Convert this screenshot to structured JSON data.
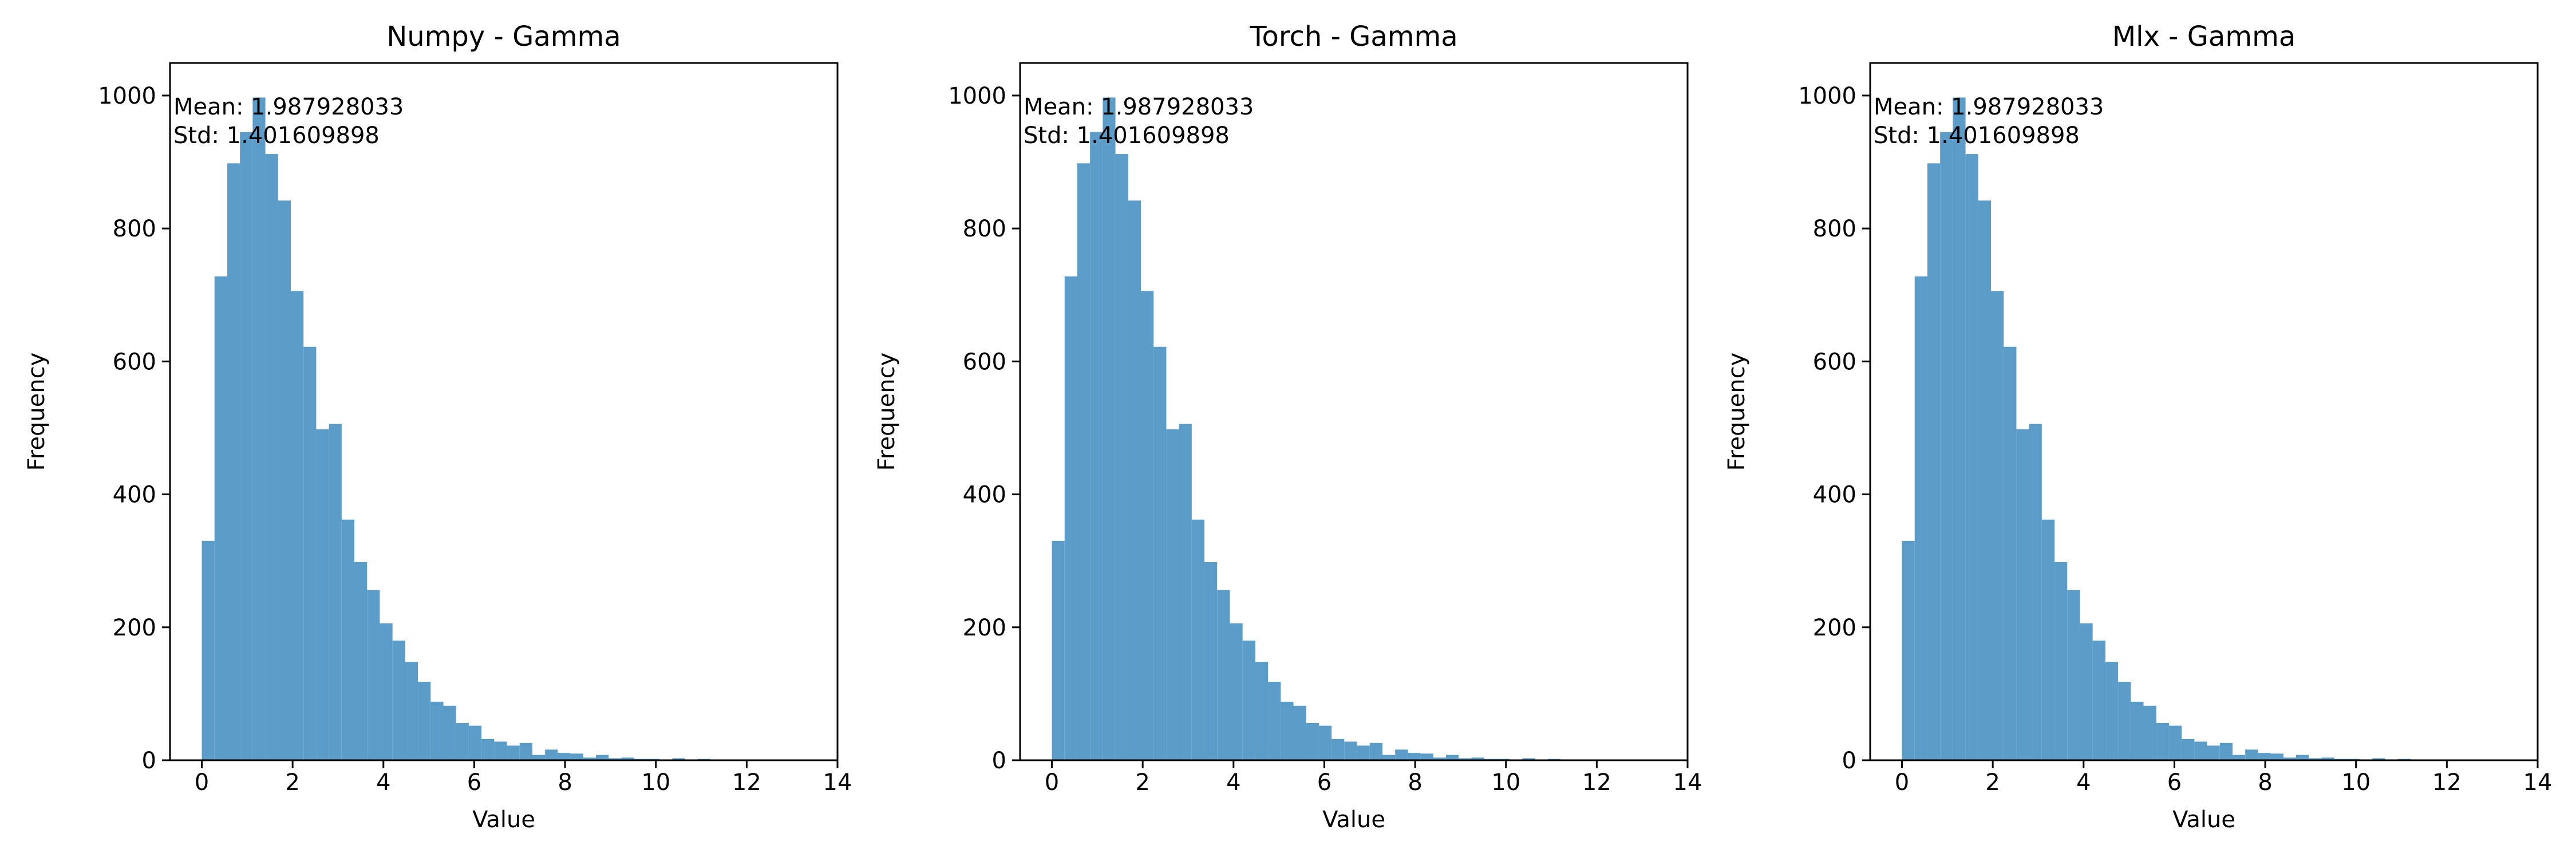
{
  "chart_data": [
    {
      "type": "bar",
      "title": "Numpy - Gamma",
      "xlabel": "Value",
      "ylabel": "Frequency",
      "xlim": [
        -0.7,
        14.0
      ],
      "ylim": [
        0,
        1049
      ],
      "xticks": [
        0,
        2,
        4,
        6,
        8,
        10,
        12,
        14
      ],
      "yticks": [
        0,
        200,
        400,
        600,
        800,
        1000
      ],
      "annotation": [
        "Mean: 1.987928033",
        "Std: 1.401609898"
      ],
      "bin_edges": [
        0.0,
        0.28,
        0.56,
        0.84,
        1.12,
        1.4,
        1.68,
        1.96,
        2.24,
        2.52,
        2.8,
        3.08,
        3.36,
        3.64,
        3.92,
        4.2,
        4.48,
        4.76,
        5.04,
        5.32,
        5.6,
        5.88,
        6.16,
        6.44,
        6.72,
        7.0,
        7.28,
        7.56,
        7.84,
        8.12,
        8.4,
        8.68,
        8.96,
        9.24,
        9.52,
        9.8,
        10.08,
        10.36,
        10.64,
        10.92,
        11.2,
        11.48,
        11.76,
        12.04,
        12.32,
        12.6,
        12.88,
        13.16,
        13.44,
        13.72,
        14.0
      ],
      "values": [
        330,
        728,
        898,
        945,
        997,
        912,
        842,
        706,
        622,
        498,
        506,
        362,
        298,
        256,
        206,
        180,
        148,
        118,
        88,
        82,
        56,
        52,
        32,
        28,
        22,
        26,
        8,
        16,
        11,
        10,
        4,
        8,
        3,
        4,
        2,
        2,
        1,
        3,
        1,
        2,
        1,
        1,
        1,
        1,
        0,
        1,
        0,
        0,
        1,
        0
      ],
      "color": "#5b9cc9",
      "grid": false
    },
    {
      "type": "bar",
      "title": "Torch - Gamma",
      "xlabel": "Value",
      "ylabel": "Frequency",
      "xlim": [
        -0.7,
        14.0
      ],
      "ylim": [
        0,
        1049
      ],
      "xticks": [
        0,
        2,
        4,
        6,
        8,
        10,
        12,
        14
      ],
      "yticks": [
        0,
        200,
        400,
        600,
        800,
        1000
      ],
      "annotation": [
        "Mean: 1.987928033",
        "Std: 1.401609898"
      ],
      "bin_edges": [
        0.0,
        0.28,
        0.56,
        0.84,
        1.12,
        1.4,
        1.68,
        1.96,
        2.24,
        2.52,
        2.8,
        3.08,
        3.36,
        3.64,
        3.92,
        4.2,
        4.48,
        4.76,
        5.04,
        5.32,
        5.6,
        5.88,
        6.16,
        6.44,
        6.72,
        7.0,
        7.28,
        7.56,
        7.84,
        8.12,
        8.4,
        8.68,
        8.96,
        9.24,
        9.52,
        9.8,
        10.08,
        10.36,
        10.64,
        10.92,
        11.2,
        11.48,
        11.76,
        12.04,
        12.32,
        12.6,
        12.88,
        13.16,
        13.44,
        13.72,
        14.0
      ],
      "values": [
        330,
        728,
        898,
        945,
        997,
        912,
        842,
        706,
        622,
        498,
        506,
        362,
        298,
        256,
        206,
        180,
        148,
        118,
        88,
        82,
        56,
        52,
        32,
        28,
        22,
        26,
        8,
        16,
        11,
        10,
        4,
        8,
        3,
        4,
        2,
        2,
        1,
        3,
        1,
        2,
        1,
        1,
        1,
        1,
        0,
        1,
        0,
        0,
        1,
        0
      ],
      "color": "#5b9cc9",
      "grid": false
    },
    {
      "type": "bar",
      "title": "Mlx - Gamma",
      "xlabel": "Value",
      "ylabel": "Frequency",
      "xlim": [
        -0.7,
        14.0
      ],
      "ylim": [
        0,
        1049
      ],
      "xticks": [
        0,
        2,
        4,
        6,
        8,
        10,
        12,
        14
      ],
      "yticks": [
        0,
        200,
        400,
        600,
        800,
        1000
      ],
      "annotation": [
        "Mean: 1.987928033",
        "Std: 1.401609898"
      ],
      "bin_edges": [
        0.0,
        0.28,
        0.56,
        0.84,
        1.12,
        1.4,
        1.68,
        1.96,
        2.24,
        2.52,
        2.8,
        3.08,
        3.36,
        3.64,
        3.92,
        4.2,
        4.48,
        4.76,
        5.04,
        5.32,
        5.6,
        5.88,
        6.16,
        6.44,
        6.72,
        7.0,
        7.28,
        7.56,
        7.84,
        8.12,
        8.4,
        8.68,
        8.96,
        9.24,
        9.52,
        9.8,
        10.08,
        10.36,
        10.64,
        10.92,
        11.2,
        11.48,
        11.76,
        12.04,
        12.32,
        12.6,
        12.88,
        13.16,
        13.44,
        13.72,
        14.0
      ],
      "values": [
        330,
        728,
        898,
        945,
        997,
        912,
        842,
        706,
        622,
        498,
        506,
        362,
        298,
        256,
        206,
        180,
        148,
        118,
        88,
        82,
        56,
        52,
        32,
        28,
        22,
        26,
        8,
        16,
        11,
        10,
        4,
        8,
        3,
        4,
        2,
        2,
        1,
        3,
        1,
        2,
        1,
        1,
        1,
        1,
        0,
        1,
        0,
        0,
        1,
        0
      ],
      "color": "#5b9cc9",
      "grid": false
    }
  ]
}
